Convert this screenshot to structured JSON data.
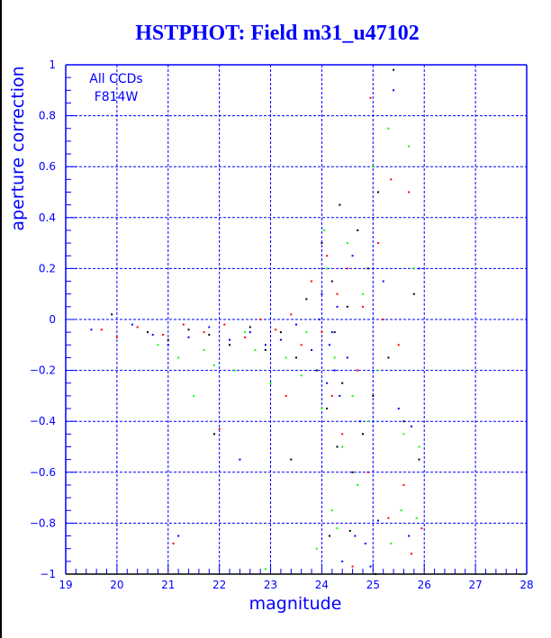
{
  "chart_data": {
    "type": "scatter",
    "title": "HSTPHOT: Field m31_u47102",
    "xlabel": "magnitude",
    "ylabel": "aperture correction",
    "xlim": [
      19,
      28
    ],
    "ylim": [
      -1,
      1
    ],
    "xticks": [
      "19",
      "20",
      "21",
      "22",
      "23",
      "24",
      "25",
      "26",
      "27",
      "28"
    ],
    "yticks": [
      "-1",
      "-0.8",
      "-0.6",
      "-0.4",
      "-0.2",
      "0",
      "0.2",
      "0.4",
      "0.6",
      "0.8",
      "1"
    ],
    "grid": true,
    "annotation": [
      "All CCDs",
      "F814W"
    ],
    "series": [
      {
        "name": "black",
        "color": "#000000",
        "points": [
          [
            19.9,
            0.02
          ],
          [
            20.6,
            -0.05
          ],
          [
            21.0,
            -0.08
          ],
          [
            21.4,
            -0.04
          ],
          [
            21.8,
            -0.06
          ],
          [
            22.2,
            -0.1
          ],
          [
            22.6,
            -0.03
          ],
          [
            22.9,
            -0.12
          ],
          [
            23.2,
            -0.05
          ],
          [
            23.5,
            -0.15
          ],
          [
            23.7,
            0.08
          ],
          [
            23.9,
            -0.2
          ],
          [
            24.0,
            0.3
          ],
          [
            24.1,
            -0.35
          ],
          [
            24.15,
            -0.85
          ],
          [
            24.2,
            0.15
          ],
          [
            24.25,
            -0.05
          ],
          [
            24.3,
            -0.5
          ],
          [
            24.35,
            0.45
          ],
          [
            24.4,
            -0.25
          ],
          [
            24.5,
            0.05
          ],
          [
            24.55,
            -0.83
          ],
          [
            24.6,
            -0.6
          ],
          [
            24.7,
            0.35
          ],
          [
            24.8,
            -0.45
          ],
          [
            24.9,
            0.2
          ],
          [
            25.0,
            -0.3
          ],
          [
            25.05,
            -1.0
          ],
          [
            25.1,
            0.5
          ],
          [
            25.3,
            -0.15
          ],
          [
            25.4,
            0.98
          ],
          [
            25.6,
            -0.4
          ],
          [
            25.8,
            0.1
          ],
          [
            25.9,
            -0.55
          ],
          [
            21.9,
            -0.45
          ],
          [
            23.4,
            -0.55
          ]
        ]
      },
      {
        "name": "red",
        "color": "#ff0000",
        "points": [
          [
            19.7,
            -0.04
          ],
          [
            20.0,
            -0.07
          ],
          [
            20.4,
            -0.03
          ],
          [
            20.9,
            -0.06
          ],
          [
            21.1,
            -0.88
          ],
          [
            21.3,
            -0.02
          ],
          [
            21.7,
            -0.05
          ],
          [
            22.1,
            -0.02
          ],
          [
            22.5,
            -0.07
          ],
          [
            22.8,
            0.0
          ],
          [
            23.1,
            -0.04
          ],
          [
            23.4,
            0.02
          ],
          [
            23.6,
            -0.1
          ],
          [
            23.8,
            0.15
          ],
          [
            24.0,
            -0.05
          ],
          [
            24.1,
            0.25
          ],
          [
            24.2,
            -0.3
          ],
          [
            24.3,
            0.1
          ],
          [
            24.4,
            -0.45
          ],
          [
            24.5,
            0.2
          ],
          [
            24.6,
            -0.97
          ],
          [
            24.7,
            -0.2
          ],
          [
            24.8,
            0.05
          ],
          [
            24.9,
            -0.6
          ],
          [
            24.95,
            0.87
          ],
          [
            25.1,
            0.3
          ],
          [
            25.3,
            -0.78
          ],
          [
            25.35,
            0.55
          ],
          [
            25.5,
            -0.1
          ],
          [
            25.7,
            0.5
          ],
          [
            25.75,
            -0.92
          ],
          [
            25.95,
            -0.82
          ],
          [
            25.6,
            -0.65
          ],
          [
            25.2,
            0.0
          ],
          [
            22.0,
            -0.43
          ],
          [
            23.3,
            -0.3
          ]
        ]
      },
      {
        "name": "green",
        "color": "#00ff00",
        "points": [
          [
            20.8,
            -0.1
          ],
          [
            21.2,
            -0.15
          ],
          [
            21.5,
            -0.3
          ],
          [
            21.9,
            -0.18
          ],
          [
            22.3,
            -0.2
          ],
          [
            22.7,
            -0.12
          ],
          [
            22.9,
            -0.98
          ],
          [
            23.0,
            -0.25
          ],
          [
            23.3,
            -0.15
          ],
          [
            23.6,
            -0.22
          ],
          [
            23.9,
            -0.9
          ],
          [
            24.0,
            -0.35
          ],
          [
            24.1,
            0.2
          ],
          [
            24.2,
            -0.75
          ],
          [
            24.25,
            -0.15
          ],
          [
            24.3,
            -0.82
          ],
          [
            24.4,
            -0.5
          ],
          [
            24.5,
            0.3
          ],
          [
            24.6,
            -0.3
          ],
          [
            24.7,
            -0.65
          ],
          [
            24.8,
            0.1
          ],
          [
            24.9,
            -0.4
          ],
          [
            25.0,
            0.6
          ],
          [
            25.1,
            -0.2
          ],
          [
            25.3,
            0.75
          ],
          [
            25.35,
            -0.88
          ],
          [
            25.55,
            -0.75
          ],
          [
            25.6,
            -0.45
          ],
          [
            25.7,
            0.68
          ],
          [
            25.85,
            -0.78
          ],
          [
            25.9,
            -0.5
          ],
          [
            25.8,
            0.2
          ],
          [
            24.05,
            0.35
          ],
          [
            23.7,
            -0.05
          ],
          [
            22.5,
            -0.05
          ],
          [
            21.7,
            -0.12
          ]
        ]
      },
      {
        "name": "blue",
        "color": "#0000ff",
        "points": [
          [
            19.5,
            -0.04
          ],
          [
            20.3,
            -0.02
          ],
          [
            20.7,
            -0.06
          ],
          [
            21.0,
            -0.1
          ],
          [
            21.4,
            -0.07
          ],
          [
            21.8,
            -0.03
          ],
          [
            22.2,
            -0.08
          ],
          [
            22.6,
            -0.05
          ],
          [
            22.9,
            -0.1
          ],
          [
            23.2,
            -0.08
          ],
          [
            23.5,
            -0.02
          ],
          [
            23.8,
            -0.12
          ],
          [
            24.0,
            0.1
          ],
          [
            24.15,
            -0.1
          ],
          [
            24.2,
            -0.05
          ],
          [
            24.25,
            -0.2
          ],
          [
            24.3,
            0.05
          ],
          [
            24.35,
            -0.3
          ],
          [
            24.4,
            -0.95
          ],
          [
            24.5,
            -0.15
          ],
          [
            24.6,
            0.25
          ],
          [
            24.65,
            -0.85
          ],
          [
            24.75,
            -0.4
          ],
          [
            24.85,
            -0.88
          ],
          [
            24.95,
            -0.97
          ],
          [
            25.1,
            -0.79
          ],
          [
            25.2,
            0.15
          ],
          [
            25.4,
            0.9
          ],
          [
            25.5,
            -0.35
          ],
          [
            25.7,
            -0.85
          ],
          [
            25.75,
            -0.42
          ],
          [
            25.9,
            0.2
          ],
          [
            24.1,
            -0.25
          ],
          [
            23.95,
            0.0
          ],
          [
            22.4,
            -0.55
          ],
          [
            21.2,
            -0.85
          ]
        ]
      }
    ]
  }
}
